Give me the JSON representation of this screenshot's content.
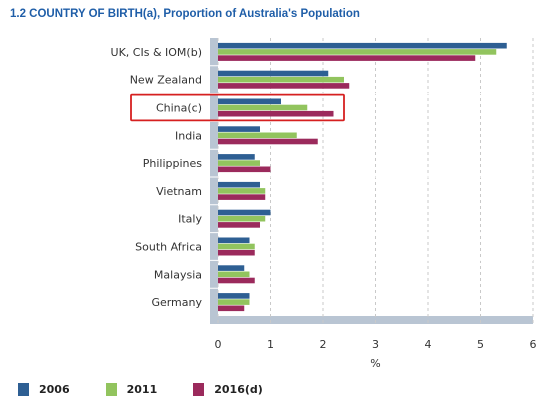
{
  "chart_data": {
    "type": "bar",
    "orientation": "horizontal",
    "title": "1.2 COUNTRY OF BIRTH(a), Proportion of Australia's Population",
    "xlabel": "%",
    "ylabel": "",
    "xlim": [
      0,
      6
    ],
    "xticks": [
      "0",
      "1",
      "2",
      "3",
      "4",
      "5",
      "6"
    ],
    "grid": true,
    "legend_position": "bottom",
    "categories": [
      "UK, CIs & IOM(b)",
      "New Zealand",
      "China(c)",
      "India",
      "Philippines",
      "Vietnam",
      "Italy",
      "South Africa",
      "Malaysia",
      "Germany"
    ],
    "series": [
      {
        "name": "2006",
        "color": "#2e5f93",
        "values": [
          5.5,
          2.1,
          1.2,
          0.8,
          0.7,
          0.8,
          1.0,
          0.6,
          0.5,
          0.6
        ]
      },
      {
        "name": "2011",
        "color": "#92c45e",
        "values": [
          5.3,
          2.4,
          1.7,
          1.5,
          0.8,
          0.9,
          0.9,
          0.7,
          0.6,
          0.6
        ]
      },
      {
        "name": "2016(d)",
        "color": "#9b2a5c",
        "values": [
          4.9,
          2.5,
          2.2,
          1.9,
          1.0,
          0.9,
          0.8,
          0.7,
          0.7,
          0.5
        ]
      }
    ],
    "highlighted_category": "China(c)",
    "highlight_color": "#d62020"
  }
}
